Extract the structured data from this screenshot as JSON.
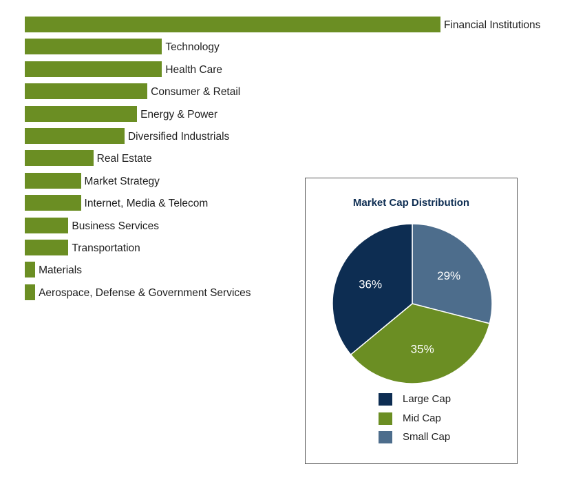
{
  "chart_data": [
    {
      "type": "bar",
      "orientation": "horizontal",
      "categories": [
        "Financial Institutions",
        "Technology",
        "Health Care",
        "Consumer & Retail",
        "Energy & Power",
        "Diversified Industrials",
        "Real Estate",
        "Market Strategy",
        "Internet, Media & Telecom",
        "Business Services",
        "Transportation",
        "Materials",
        "Aerospace, Defense & Government Services"
      ],
      "values": [
        100,
        33,
        33,
        29.5,
        27,
        24,
        16.5,
        13.5,
        13.5,
        10.5,
        10.5,
        2.5,
        2.5
      ],
      "value_scale": "relative (largest bar = 100); no axis or values printed",
      "color": "#6b8e23",
      "grid": false,
      "legend": "none"
    },
    {
      "type": "pie",
      "title": "Market Cap Distribution",
      "categories": [
        "Large Cap",
        "Mid Cap",
        "Small Cap"
      ],
      "values": [
        36,
        35,
        29
      ],
      "labels": [
        "36%",
        "35%",
        "29%"
      ],
      "colors": [
        "#0d2d52",
        "#6b8e23",
        "#4d6d8c"
      ],
      "legend": "bottom"
    }
  ]
}
